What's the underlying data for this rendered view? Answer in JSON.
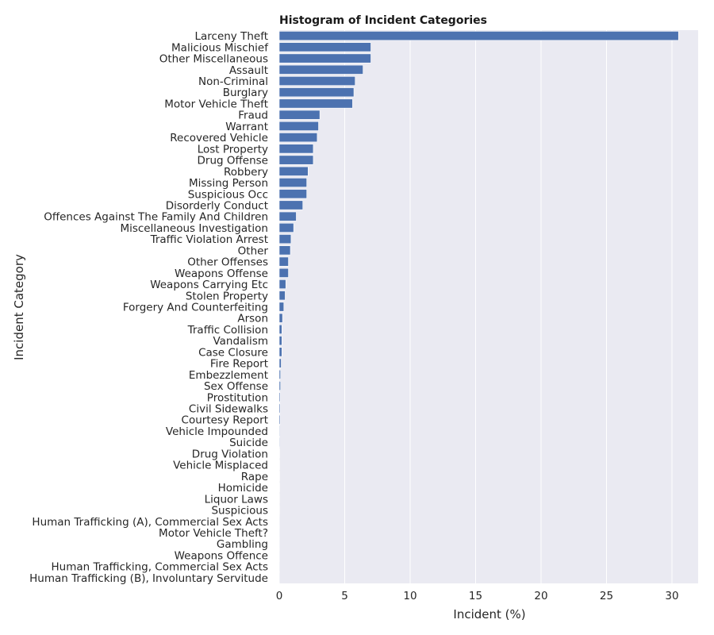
{
  "chart_data": {
    "type": "bar",
    "orientation": "horizontal",
    "title": "Histogram of Incident Categories",
    "xlabel": "Incident (%)",
    "ylabel": "Incident Category",
    "xlim": [
      0,
      32
    ],
    "xticks": [
      0,
      5,
      10,
      15,
      20,
      25,
      30
    ],
    "grid": true,
    "background": "#eaeaf2",
    "bar_color": "#4c72b0",
    "categories": [
      "Larceny Theft",
      "Malicious Mischief",
      "Other Miscellaneous",
      "Assault",
      "Non-Criminal",
      "Burglary",
      "Motor Vehicle Theft",
      "Fraud",
      "Warrant",
      "Recovered Vehicle",
      "Lost Property",
      "Drug Offense",
      "Robbery",
      "Missing Person",
      "Suspicious Occ",
      "Disorderly Conduct",
      "Offences Against The Family And Children",
      "Miscellaneous Investigation",
      "Traffic Violation Arrest",
      "Other",
      "Other Offenses",
      "Weapons Offense",
      "Weapons Carrying Etc",
      "Stolen Property",
      "Forgery And Counterfeiting",
      "Arson",
      "Traffic Collision",
      "Vandalism",
      "Case Closure",
      "Fire Report",
      "Embezzlement",
      "Sex Offense",
      "Prostitution",
      "Civil Sidewalks",
      "Courtesy Report",
      "Vehicle Impounded",
      "Suicide",
      "Drug Violation",
      "Vehicle Misplaced",
      "Rape",
      "Homicide",
      "Liquor Laws",
      "Suspicious",
      "Human Trafficking (A), Commercial Sex Acts",
      "Motor Vehicle Theft?",
      "Gambling",
      "Weapons Offence",
      "Human Trafficking, Commercial Sex Acts",
      "Human Trafficking (B), Involuntary Servitude"
    ],
    "values": [
      30.5,
      7.0,
      7.0,
      6.4,
      5.8,
      5.7,
      5.6,
      3.1,
      3.0,
      2.9,
      2.6,
      2.6,
      2.2,
      2.1,
      2.1,
      1.8,
      1.3,
      1.1,
      0.9,
      0.85,
      0.7,
      0.7,
      0.5,
      0.45,
      0.35,
      0.25,
      0.2,
      0.2,
      0.2,
      0.15,
      0.1,
      0.1,
      0.07,
      0.07,
      0.07,
      0.04,
      0.04,
      0.03,
      0.03,
      0.03,
      0.03,
      0.02,
      0.02,
      0.01,
      0.01,
      0.01,
      0.01,
      0.005,
      0.005
    ]
  }
}
